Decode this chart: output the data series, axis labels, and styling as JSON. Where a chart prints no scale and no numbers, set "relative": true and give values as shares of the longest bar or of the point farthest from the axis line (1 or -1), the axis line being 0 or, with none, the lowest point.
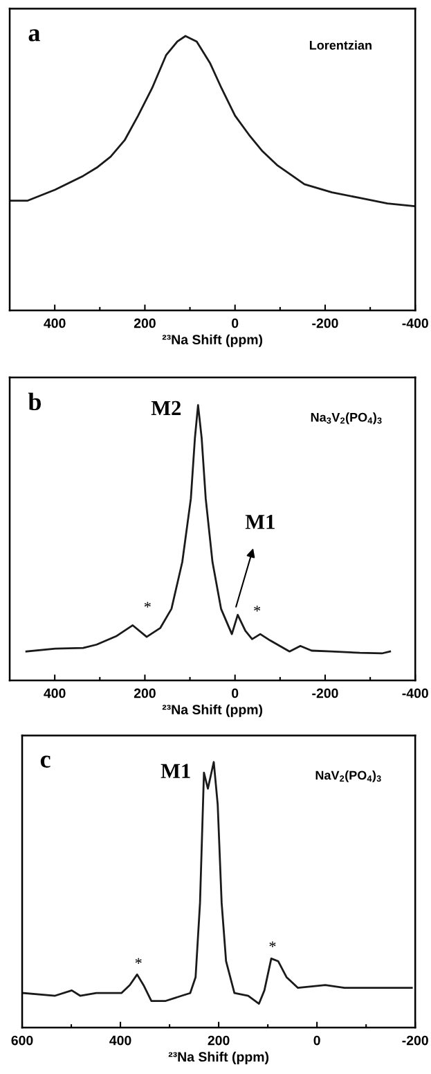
{
  "chart_data": [
    {
      "type": "line",
      "title": "a",
      "xlabel": "²³Na Shift (ppm)",
      "relative": true,
      "xlim": [
        500,
        -400
      ],
      "xticks": [
        400,
        {
          "value": 300,
          "label": null
        },
        200,
        {
          "value": 100,
          "label": null
        },
        0,
        {
          "value": -100,
          "label": null
        },
        -200,
        {
          "value": -300,
          "label": null
        },
        -400
      ],
      "tick_labels": "x",
      "line_style": "solid",
      "annotations": [
        "Lorentzian"
      ],
      "series": [
        {
          "color": "#1a1a1a",
          "x": [
            500,
            460,
            399,
            337,
            307,
            276,
            245,
            215,
            184,
            153,
            128,
            110,
            85,
            55,
            30,
            0,
            -31,
            -61,
            -93,
            -154,
            -215,
            -277,
            -338,
            -397
          ],
          "values": [
            0.4,
            0.4,
            0.44,
            0.49,
            0.52,
            0.56,
            0.62,
            0.71,
            0.81,
            0.93,
            0.98,
            1.0,
            0.98,
            0.9,
            0.81,
            0.71,
            0.64,
            0.58,
            0.53,
            0.46,
            0.43,
            0.41,
            0.39,
            0.38
          ]
        }
      ]
    },
    {
      "type": "line",
      "title": "b",
      "xlabel": "²³Na Shift (ppm)",
      "relative": true,
      "xlim": [
        500,
        -400
      ],
      "xticks": [
        400,
        {
          "value": 300,
          "label": null
        },
        200,
        {
          "value": 100,
          "label": null
        },
        0,
        {
          "value": -100,
          "label": null
        },
        -200,
        {
          "value": -300,
          "label": null
        },
        -400
      ],
      "tick_labels": "x",
      "line_style": "solid",
      "annotations": [
        "Na$_{3}$V$_{2}$(PO$_{4}$)$_{3}$",
        "M2",
        "M1",
        "*",
        "*"
      ],
      "series": [
        {
          "color": "#1a1a1a",
          "x": [
            463,
            399,
            337,
            307,
            264,
            227,
            196,
            166,
            141,
            117,
            98,
            89,
            82,
            74,
            65,
            50,
            31,
            7,
            -6,
            -23,
            -38,
            -56,
            -78,
            -121,
            -145,
            -170,
            -213,
            -277,
            -326,
            -344
          ],
          "values": [
            0.105,
            0.115,
            0.118,
            0.13,
            0.16,
            0.2,
            0.158,
            0.19,
            0.26,
            0.43,
            0.66,
            0.88,
            1.0,
            0.88,
            0.66,
            0.43,
            0.26,
            0.168,
            0.238,
            0.18,
            0.15,
            0.168,
            0.145,
            0.105,
            0.125,
            0.108,
            0.105,
            0.1,
            0.098,
            0.105
          ]
        }
      ]
    },
    {
      "type": "line",
      "title": "c",
      "xlabel": "²³Na Shift (ppm)",
      "relative": true,
      "xlim": [
        600,
        -200
      ],
      "xticks": [
        600,
        {
          "value": 500,
          "label": null
        },
        400,
        {
          "value": 300,
          "label": null
        },
        200,
        {
          "value": 100,
          "label": null
        },
        0,
        {
          "value": -100,
          "label": null
        },
        -200
      ],
      "tick_labels": "x",
      "line_style": "solid",
      "annotations": [
        "NaV$_{2}$(PO$_{4}$)$_{3}$",
        "M1",
        "*",
        "*"
      ],
      "series": [
        {
          "color": "#1a1a1a",
          "x": [
            597,
            533,
            499,
            482,
            449,
            398,
            381,
            366,
            353,
            337,
            309,
            275,
            258,
            247,
            238,
            230,
            222,
            210,
            202,
            194,
            185,
            168,
            140,
            118,
            107,
            93,
            79,
            62,
            39,
            -17,
            -56,
            -112,
            -193
          ],
          "values": [
            0.13,
            0.12,
            0.14,
            0.12,
            0.13,
            0.13,
            0.16,
            0.2,
            0.16,
            0.1,
            0.1,
            0.12,
            0.13,
            0.19,
            0.47,
            0.96,
            0.9,
            1.0,
            0.84,
            0.47,
            0.25,
            0.13,
            0.12,
            0.09,
            0.14,
            0.26,
            0.25,
            0.19,
            0.15,
            0.16,
            0.15,
            0.15,
            0.15
          ]
        }
      ]
    }
  ]
}
